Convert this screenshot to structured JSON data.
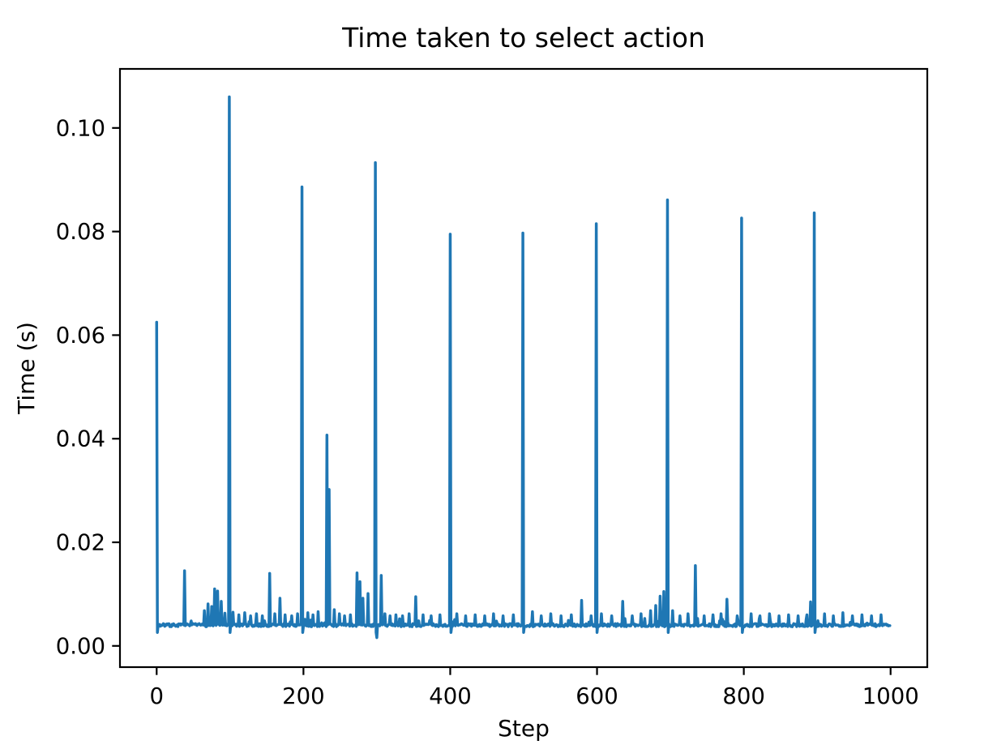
{
  "figure": {
    "background": "#ffffff"
  },
  "chart_data": {
    "type": "line",
    "title": "Time taken to select action",
    "xlabel": "Step",
    "ylabel": "Time (s)",
    "line_color": "#1f77b4",
    "axis_color": "#000000",
    "grid": false,
    "legend": null,
    "xlim": [
      -50,
      1050
    ],
    "ylim": [
      -0.0041,
      0.1114
    ],
    "x_ticks": [
      0,
      200,
      400,
      600,
      800,
      1000
    ],
    "x_tick_labels": [
      "0",
      "200",
      "400",
      "600",
      "800",
      "1000"
    ],
    "y_ticks": [
      0.0,
      0.02,
      0.04,
      0.06,
      0.08,
      0.1
    ],
    "y_tick_labels": [
      "0.00",
      "0.02",
      "0.04",
      "0.06",
      "0.08",
      "0.10"
    ],
    "num_steps": 999,
    "baseline": 0.004,
    "noise_amplitude": 0.0003,
    "post_spike_dip": 0.0026,
    "extra_dips": [
      [
        300,
        0.0016
      ]
    ],
    "major_spikes": [
      [
        0,
        0.0625
      ],
      [
        99,
        0.106
      ],
      [
        198,
        0.0886
      ],
      [
        298,
        0.0933
      ],
      [
        400,
        0.0795
      ],
      [
        499,
        0.0797
      ],
      [
        599,
        0.0815
      ],
      [
        696,
        0.0861
      ],
      [
        797,
        0.0826
      ],
      [
        896,
        0.0836
      ]
    ],
    "minor_spikes": [
      [
        38,
        0.0145
      ],
      [
        65,
        0.0068
      ],
      [
        70,
        0.0081
      ],
      [
        75,
        0.0076
      ],
      [
        79,
        0.011
      ],
      [
        83,
        0.0106
      ],
      [
        88,
        0.0086
      ],
      [
        93,
        0.0063
      ],
      [
        104,
        0.0065
      ],
      [
        112,
        0.006
      ],
      [
        120,
        0.0064
      ],
      [
        128,
        0.0058
      ],
      [
        136,
        0.0062
      ],
      [
        144,
        0.0058
      ],
      [
        154,
        0.014
      ],
      [
        161,
        0.0062
      ],
      [
        168,
        0.0092
      ],
      [
        175,
        0.006
      ],
      [
        184,
        0.0058
      ],
      [
        192,
        0.0062
      ],
      [
        206,
        0.0064
      ],
      [
        213,
        0.006
      ],
      [
        220,
        0.0066
      ],
      [
        232,
        0.0407
      ],
      [
        235,
        0.0302
      ],
      [
        242,
        0.007
      ],
      [
        249,
        0.0062
      ],
      [
        256,
        0.0058
      ],
      [
        264,
        0.006
      ],
      [
        273,
        0.0141
      ],
      [
        277,
        0.0124
      ],
      [
        281,
        0.0092
      ],
      [
        288,
        0.0101
      ],
      [
        306,
        0.0136
      ],
      [
        311,
        0.0062
      ],
      [
        318,
        0.0058
      ],
      [
        326,
        0.006
      ],
      [
        335,
        0.0058
      ],
      [
        344,
        0.0062
      ],
      [
        353,
        0.0095
      ],
      [
        363,
        0.006
      ],
      [
        374,
        0.0058
      ],
      [
        386,
        0.006
      ],
      [
        409,
        0.0062
      ],
      [
        421,
        0.0058
      ],
      [
        434,
        0.006
      ],
      [
        447,
        0.0058
      ],
      [
        459,
        0.0062
      ],
      [
        472,
        0.0058
      ],
      [
        486,
        0.006
      ],
      [
        512,
        0.0066
      ],
      [
        524,
        0.0058
      ],
      [
        537,
        0.0062
      ],
      [
        551,
        0.0058
      ],
      [
        565,
        0.006
      ],
      [
        579,
        0.0088
      ],
      [
        592,
        0.0058
      ],
      [
        606,
        0.0062
      ],
      [
        620,
        0.0058
      ],
      [
        635,
        0.0086
      ],
      [
        648,
        0.0058
      ],
      [
        660,
        0.0062
      ],
      [
        673,
        0.0068
      ],
      [
        680,
        0.0078
      ],
      [
        686,
        0.0096
      ],
      [
        691,
        0.0105
      ],
      [
        703,
        0.0068
      ],
      [
        713,
        0.0058
      ],
      [
        724,
        0.0062
      ],
      [
        734,
        0.0155
      ],
      [
        746,
        0.0058
      ],
      [
        758,
        0.006
      ],
      [
        769,
        0.0062
      ],
      [
        777,
        0.009
      ],
      [
        791,
        0.0058
      ],
      [
        810,
        0.0062
      ],
      [
        822,
        0.0058
      ],
      [
        835,
        0.0062
      ],
      [
        848,
        0.0058
      ],
      [
        861,
        0.006
      ],
      [
        874,
        0.0058
      ],
      [
        886,
        0.006
      ],
      [
        891,
        0.0085
      ],
      [
        910,
        0.0062
      ],
      [
        922,
        0.0058
      ],
      [
        935,
        0.0064
      ],
      [
        948,
        0.0058
      ],
      [
        961,
        0.006
      ],
      [
        974,
        0.0058
      ],
      [
        987,
        0.006
      ]
    ]
  }
}
